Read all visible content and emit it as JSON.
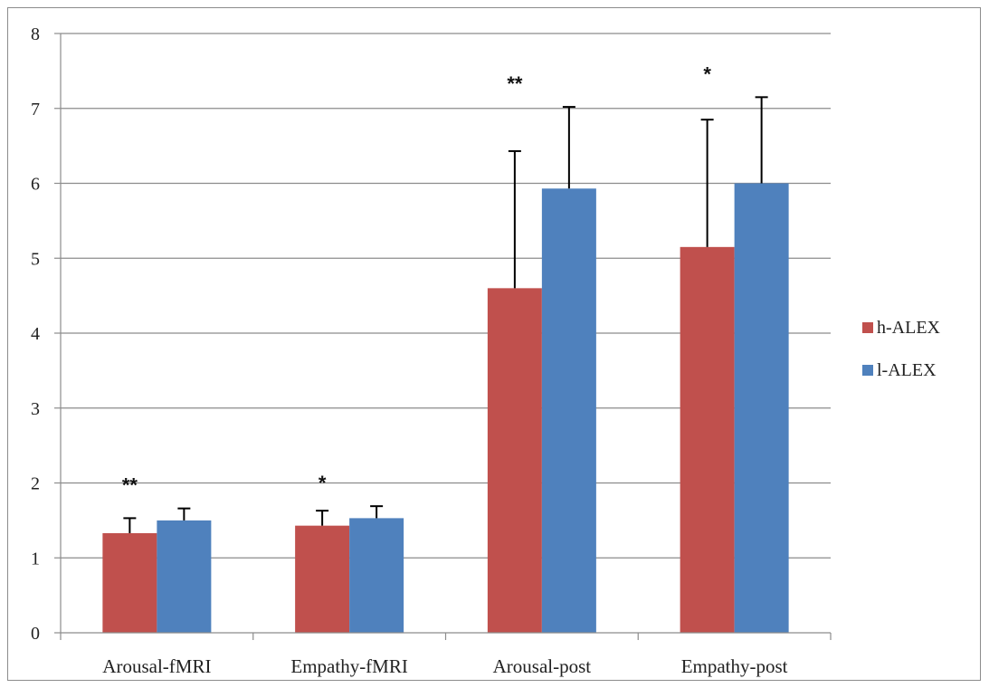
{
  "chart_data": {
    "type": "bar",
    "title": "",
    "xlabel": "",
    "ylabel": "",
    "ylim": [
      0,
      8
    ],
    "yticks": [
      "0",
      "1",
      "2",
      "3",
      "4",
      "5",
      "6",
      "7",
      "8"
    ],
    "grid": true,
    "legend_position": "right",
    "categories": [
      "Arousal-fMRI",
      "Empathy-fMRI",
      "Arousal-post",
      "Empathy-post"
    ],
    "series": [
      {
        "name": "h-ALEX",
        "color": "#c0504d",
        "values": [
          1.33,
          1.43,
          4.6,
          5.15
        ],
        "error": [
          0.2,
          0.2,
          1.83,
          1.7
        ]
      },
      {
        "name": "l-ALEX",
        "color": "#4f81bd",
        "values": [
          1.5,
          1.53,
          5.93,
          6.0
        ],
        "error": [
          0.16,
          0.16,
          1.09,
          1.15
        ]
      }
    ],
    "annotations": [
      "**",
      "*",
      "**",
      "*"
    ]
  }
}
